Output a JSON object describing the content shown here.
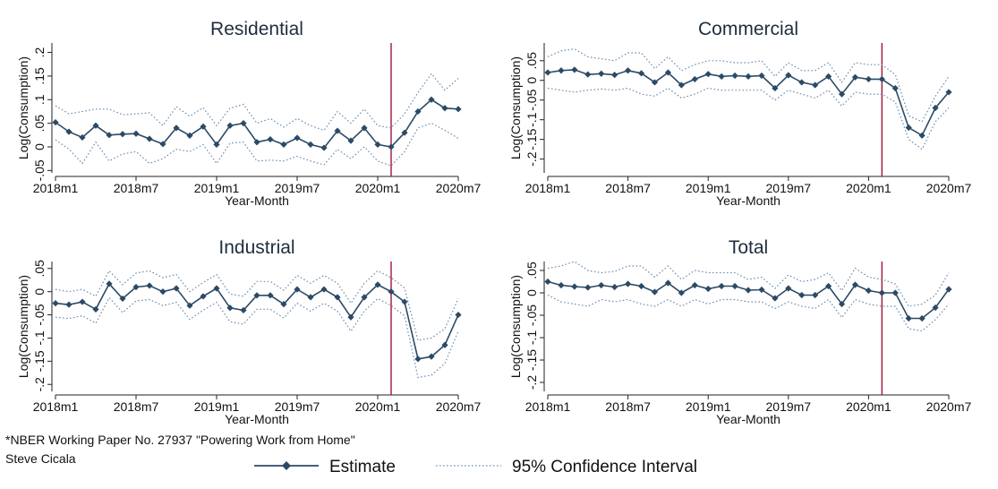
{
  "footnote": {
    "line1": "*NBER Working Paper No. 27937 \"Powering Work from Home\"",
    "line2": "Steve Cicala"
  },
  "legend": {
    "estimate_label": "Estimate",
    "ci_label": "95% Confidence Interval"
  },
  "colors": {
    "estimate": "#2b4a66",
    "ci": "#6d8fb0",
    "event_line": "#a0163a"
  },
  "chart_data": [
    {
      "type": "line",
      "title": "Residential",
      "xlabel": "Year-Month",
      "ylabel": "Log(Consumption)",
      "x_ticks": [
        "2018m1",
        "2018m7",
        "2019m1",
        "2019m7",
        "2020m1",
        "2020m7"
      ],
      "y_ticks": [
        "-.05",
        "0",
        ".05",
        ".1",
        ".15",
        ".2"
      ],
      "y_tick_values": [
        -0.05,
        0,
        0.05,
        0.1,
        0.15,
        0.2
      ],
      "ylim": [
        -0.055,
        0.22
      ],
      "x_start": "2018m1",
      "x_end": "2020m7",
      "event_month": "2020m2",
      "series": [
        {
          "name": "Estimate",
          "values": [
            0.052,
            0.032,
            0.02,
            0.045,
            0.025,
            0.027,
            0.028,
            0.017,
            0.006,
            0.04,
            0.024,
            0.043,
            0.005,
            0.045,
            0.05,
            0.01,
            0.016,
            0.005,
            0.019,
            0.005,
            -0.002,
            0.034,
            0.013,
            0.04,
            0.005,
            0.0,
            0.03,
            0.075,
            0.1,
            0.082,
            0.08
          ]
        },
        {
          "name": "95% Confidence Interval",
          "role": "upper",
          "values": [
            0.087,
            0.07,
            0.075,
            0.08,
            0.08,
            0.068,
            0.07,
            0.072,
            0.045,
            0.085,
            0.065,
            0.083,
            0.045,
            0.082,
            0.09,
            0.05,
            0.06,
            0.042,
            0.06,
            0.045,
            0.035,
            0.075,
            0.05,
            0.08,
            0.045,
            0.04,
            0.07,
            0.115,
            0.155,
            0.12,
            0.145
          ]
        },
        {
          "name": "95% Confidence Interval",
          "role": "lower",
          "values": [
            0.015,
            -0.005,
            -0.035,
            0.01,
            -0.03,
            -0.015,
            -0.01,
            -0.035,
            -0.025,
            -0.005,
            -0.01,
            0.005,
            -0.035,
            0.008,
            0.01,
            -0.03,
            -0.028,
            -0.03,
            -0.02,
            -0.03,
            -0.038,
            -0.005,
            -0.025,
            0.0,
            -0.03,
            -0.04,
            -0.01,
            0.04,
            0.05,
            0.035,
            0.018
          ]
        }
      ]
    },
    {
      "type": "line",
      "title": "Commercial",
      "xlabel": "Year-Month",
      "ylabel": "Log(Consumption)",
      "x_ticks": [
        "2018m1",
        "2018m7",
        "2019m1",
        "2019m7",
        "2020m1",
        "2020m7"
      ],
      "y_ticks": [
        "-.2",
        "-.15",
        "-.1",
        "-.05",
        "0",
        ".05"
      ],
      "y_tick_values": [
        -0.2,
        -0.15,
        -0.1,
        -0.05,
        0,
        0.05
      ],
      "ylim": [
        -0.235,
        0.095
      ],
      "x_start": "2018m1",
      "x_end": "2020m7",
      "event_month": "2020m2",
      "series": [
        {
          "name": "Estimate",
          "values": [
            0.02,
            0.025,
            0.027,
            0.015,
            0.017,
            0.014,
            0.025,
            0.018,
            -0.005,
            0.02,
            -0.012,
            0.003,
            0.016,
            0.01,
            0.012,
            0.01,
            0.012,
            -0.02,
            0.013,
            -0.005,
            -0.012,
            0.01,
            -0.035,
            0.008,
            0.003,
            0.003,
            -0.02,
            -0.12,
            -0.14,
            -0.07,
            -0.03
          ]
        },
        {
          "name": "95% Confidence Interval",
          "role": "upper",
          "values": [
            0.06,
            0.075,
            0.08,
            0.06,
            0.055,
            0.05,
            0.07,
            0.07,
            0.03,
            0.06,
            0.025,
            0.04,
            0.05,
            0.05,
            0.045,
            0.045,
            0.05,
            0.01,
            0.045,
            0.025,
            0.025,
            0.045,
            -0.005,
            0.045,
            0.04,
            0.04,
            0.015,
            -0.09,
            -0.105,
            -0.04,
            0.01
          ]
        },
        {
          "name": "95% Confidence Interval",
          "role": "lower",
          "values": [
            -0.02,
            -0.025,
            -0.03,
            -0.025,
            -0.022,
            -0.025,
            -0.02,
            -0.035,
            -0.04,
            -0.02,
            -0.045,
            -0.035,
            -0.02,
            -0.025,
            -0.025,
            -0.025,
            -0.025,
            -0.05,
            -0.025,
            -0.035,
            -0.045,
            -0.025,
            -0.065,
            -0.03,
            -0.035,
            -0.035,
            -0.055,
            -0.15,
            -0.175,
            -0.105,
            -0.07
          ]
        }
      ]
    },
    {
      "type": "line",
      "title": "Industrial",
      "xlabel": "Year-Month",
      "ylabel": "Log(Consumption)",
      "x_ticks": [
        "2018m1",
        "2018m7",
        "2019m1",
        "2019m7",
        "2020m1",
        "2020m7"
      ],
      "y_ticks": [
        "-.2",
        "-.15",
        "-.1",
        "-.05",
        "0",
        ".05"
      ],
      "y_tick_values": [
        -0.2,
        -0.15,
        -0.1,
        -0.05,
        0,
        0.05
      ],
      "ylim": [
        -0.215,
        0.065
      ],
      "x_start": "2018m1",
      "x_end": "2020m7",
      "event_month": "2020m2",
      "series": [
        {
          "name": "Estimate",
          "values": [
            -0.025,
            -0.028,
            -0.022,
            -0.038,
            0.017,
            -0.015,
            0.01,
            0.013,
            0.0,
            0.007,
            -0.03,
            -0.01,
            0.007,
            -0.035,
            -0.04,
            -0.008,
            -0.008,
            -0.027,
            0.005,
            -0.012,
            0.005,
            -0.012,
            -0.055,
            -0.012,
            0.015,
            0.0,
            -0.022,
            -0.145,
            -0.14,
            -0.115,
            -0.05
          ]
        },
        {
          "name": "95% Confidence Interval",
          "role": "upper",
          "values": [
            0.005,
            0.0,
            0.005,
            -0.01,
            0.045,
            0.015,
            0.04,
            0.045,
            0.03,
            0.037,
            0.0,
            0.02,
            0.037,
            -0.005,
            -0.01,
            0.022,
            0.022,
            0.003,
            0.035,
            0.018,
            0.035,
            0.018,
            -0.025,
            0.018,
            0.045,
            0.03,
            0.008,
            -0.105,
            -0.1,
            -0.08,
            -0.015
          ]
        },
        {
          "name": "95% Confidence Interval",
          "role": "lower",
          "values": [
            -0.055,
            -0.058,
            -0.052,
            -0.068,
            -0.013,
            -0.045,
            -0.02,
            -0.017,
            -0.03,
            -0.023,
            -0.06,
            -0.04,
            -0.023,
            -0.065,
            -0.07,
            -0.038,
            -0.038,
            -0.057,
            -0.025,
            -0.042,
            -0.025,
            -0.042,
            -0.085,
            -0.042,
            -0.015,
            -0.03,
            -0.052,
            -0.185,
            -0.18,
            -0.155,
            -0.085
          ]
        }
      ]
    },
    {
      "type": "line",
      "title": "Total",
      "xlabel": "Year-Month",
      "ylabel": "Log(Consumption)",
      "x_ticks": [
        "2018m1",
        "2018m7",
        "2019m1",
        "2019m7",
        "2020m1",
        "2020m7"
      ],
      "y_ticks": [
        "-.2",
        "-.15",
        "-.1",
        "-.05",
        "0",
        ".05"
      ],
      "y_tick_values": [
        -0.2,
        -0.15,
        -0.1,
        -0.05,
        0,
        0.05
      ],
      "ylim": [
        -0.22,
        0.07
      ],
      "x_start": "2018m1",
      "x_end": "2020m7",
      "event_month": "2020m2",
      "series": [
        {
          "name": "Estimate",
          "values": [
            0.025,
            0.017,
            0.014,
            0.012,
            0.017,
            0.013,
            0.02,
            0.015,
            0.002,
            0.022,
            0.0,
            0.017,
            0.009,
            0.015,
            0.015,
            0.006,
            0.007,
            -0.012,
            0.01,
            -0.005,
            -0.005,
            0.015,
            -0.025,
            0.018,
            0.005,
            0.0,
            0.0,
            -0.057,
            -0.057,
            -0.033,
            0.008
          ]
        },
        {
          "name": "95% Confidence Interval",
          "role": "upper",
          "values": [
            0.055,
            0.06,
            0.07,
            0.05,
            0.045,
            0.048,
            0.06,
            0.06,
            0.035,
            0.06,
            0.03,
            0.05,
            0.045,
            0.045,
            0.045,
            0.03,
            0.035,
            0.01,
            0.04,
            0.025,
            0.03,
            0.045,
            0.005,
            0.055,
            0.035,
            0.03,
            0.02,
            -0.03,
            -0.025,
            -0.005,
            0.045
          ]
        },
        {
          "name": "95% Confidence Interval",
          "role": "lower",
          "values": [
            -0.005,
            -0.02,
            -0.025,
            -0.03,
            -0.015,
            -0.02,
            -0.015,
            -0.025,
            -0.03,
            -0.015,
            -0.03,
            -0.015,
            -0.025,
            -0.015,
            -0.015,
            -0.02,
            -0.02,
            -0.035,
            -0.02,
            -0.03,
            -0.035,
            -0.015,
            -0.055,
            -0.015,
            -0.025,
            -0.03,
            -0.03,
            -0.08,
            -0.085,
            -0.06,
            -0.025
          ]
        }
      ]
    }
  ]
}
